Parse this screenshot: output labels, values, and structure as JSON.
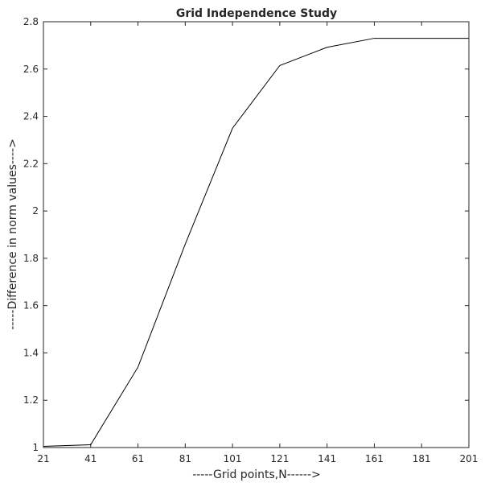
{
  "chart_data": {
    "type": "line",
    "title": "Grid Independence Study",
    "xlabel": "-----Grid points,N------>",
    "ylabel": "-----Difference in norm values---->",
    "xlim": [
      21,
      201
    ],
    "ylim": [
      1,
      2.8
    ],
    "x_ticks": [
      21,
      41,
      61,
      81,
      101,
      121,
      141,
      161,
      181,
      201
    ],
    "y_ticks": [
      1,
      1.2,
      1.4,
      1.6,
      1.8,
      2,
      2.2,
      2.4,
      2.6,
      2.8
    ],
    "x_tick_labels": [
      "21",
      "41",
      "61",
      "81",
      "101",
      "121",
      "141",
      "161",
      "181",
      "201"
    ],
    "y_tick_labels": [
      "1",
      "1.2",
      "1.4",
      "1.6",
      "1.8",
      "2",
      "2.2",
      "2.4",
      "2.6",
      "2.8"
    ],
    "grid": false,
    "legend": "none",
    "series": [
      {
        "x": [
          21,
          41,
          61,
          81,
          101,
          121,
          141,
          161,
          181,
          201
        ],
        "y": [
          1.005,
          1.012,
          1.34,
          1.86,
          2.35,
          2.615,
          2.692,
          2.73,
          2.73,
          2.73
        ],
        "color": "#000000"
      }
    ]
  }
}
